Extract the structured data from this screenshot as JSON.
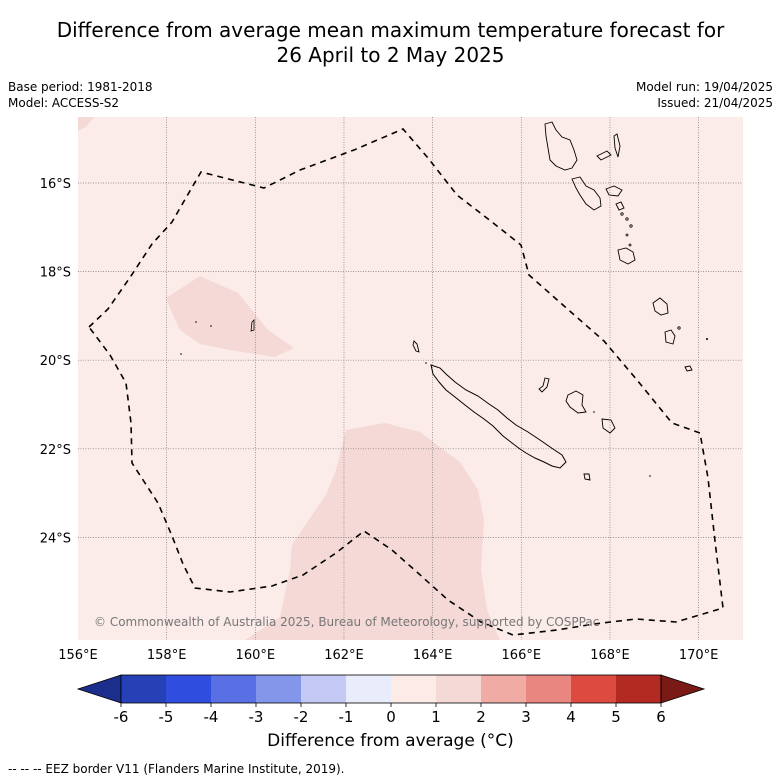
{
  "title_line1": "Difference from average mean maximum temperature forecast for",
  "title_line2": "26 April to 2 May 2025",
  "base_period": "Base period: 1981-2018",
  "model": "Model: ACCESS-S2",
  "model_run": "Model run: 19/04/2025",
  "issued": "Issued: 21/04/2025",
  "copyright": "© Commonwealth of Australia 2025, Bureau of Meteorology, supported by COSPPac",
  "footer": "-- -- -- EEZ border V11 (Flanders Marine Institute, 2019).",
  "map": {
    "lon_ticks": [
      "156°E",
      "158°E",
      "160°E",
      "162°E",
      "164°E",
      "166°E",
      "168°E",
      "170°E"
    ],
    "lat_ticks": [
      "16°S",
      "18°S",
      "20°S",
      "22°S",
      "24°S"
    ],
    "lon_range": [
      156,
      171
    ],
    "lat_range": [
      -26.4,
      -14.6
    ],
    "background_category": "0 to 1",
    "colors": {
      "background_0_1": "#fbebe9",
      "anomaly_1_2": "#f5d9d6",
      "eez_border": "#000000"
    }
  },
  "colorbar": {
    "title": "Difference from average (°C)",
    "tick_labels": [
      "-6",
      "-5",
      "-4",
      "-3",
      "-2",
      "-1",
      "0",
      "1",
      "2",
      "3",
      "4",
      "5",
      "6"
    ],
    "colors": [
      "#1c2e8c",
      "#2541b5",
      "#2f4ee0",
      "#5870e4",
      "#8496ea",
      "#c3c9f4",
      "#e9ecfb",
      "#fdebe7",
      "#f5d9d6",
      "#f0aba5",
      "#e8867f",
      "#dd4a3f",
      "#b22a21",
      "#7a1a14"
    ]
  }
}
